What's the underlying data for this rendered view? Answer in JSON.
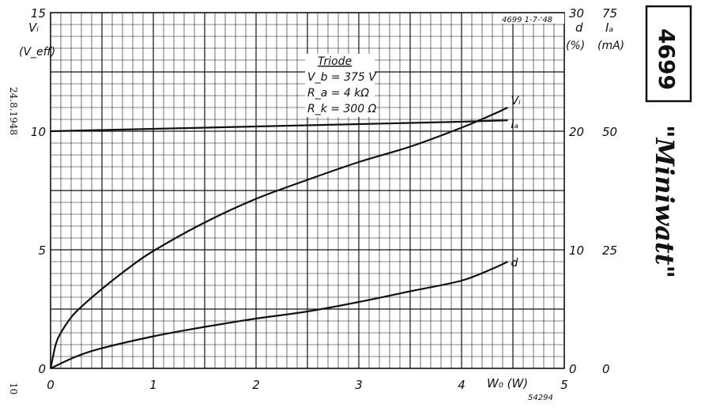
{
  "chart_data": {
    "type": "line",
    "header_code": "4699  1-7-'48",
    "tube_number": "4699",
    "brand": "\"Miniwatt\"",
    "side_date": "24.8.1948",
    "side_number": "10",
    "footer_code": "54294",
    "x_axis": {
      "label": "W₀ (W)",
      "range": [
        0,
        5
      ],
      "ticks": [
        "0",
        "1",
        "2",
        "3",
        "4",
        "5"
      ]
    },
    "y_left": {
      "label_top": "Vᵢ",
      "label_unit": "(V_eff)",
      "range": [
        0,
        15
      ],
      "ticks": [
        "0",
        "5",
        "10",
        "15"
      ],
      "tick_values": [
        0,
        5,
        10,
        15
      ]
    },
    "y_mid": {
      "label_top": "d",
      "label_unit": "(%)",
      "range": [
        0,
        30
      ],
      "ticks": [
        "0",
        "10",
        "20",
        "30"
      ],
      "tick_values": [
        0,
        10,
        20,
        30
      ]
    },
    "y_right": {
      "label_top": "Iₐ",
      "label_unit": "(mA)",
      "range": [
        0,
        75
      ],
      "ticks": [
        "0",
        "25",
        "50",
        "75"
      ],
      "tick_values": [
        0,
        25,
        50,
        75
      ]
    },
    "legend_box": {
      "title": "Triode",
      "lines": [
        "V_b = 375 V",
        "R_a = 4 kΩ",
        "R_k = 300 Ω"
      ]
    },
    "series": [
      {
        "name": "Vᵢ",
        "axis": "left",
        "x": [
          0,
          0.05,
          0.1,
          0.2,
          0.3,
          0.5,
          0.75,
          1.0,
          1.5,
          2.0,
          2.5,
          3.0,
          3.5,
          4.0,
          4.3,
          4.45
        ],
        "y": [
          0,
          1.0,
          1.5,
          2.15,
          2.6,
          3.35,
          4.2,
          4.95,
          6.15,
          7.15,
          7.95,
          8.7,
          9.35,
          10.15,
          10.7,
          11.0
        ]
      },
      {
        "name": "Iₐ",
        "axis": "right",
        "x": [
          0,
          1,
          2,
          3,
          4,
          4.45
        ],
        "y": [
          50,
          50.5,
          51,
          51.5,
          52,
          52.3
        ]
      },
      {
        "name": "d",
        "axis": "mid",
        "x": [
          0,
          0.25,
          0.5,
          1.0,
          1.5,
          2.0,
          2.5,
          3.0,
          3.5,
          4.0,
          4.3,
          4.45
        ],
        "y": [
          0,
          1.0,
          1.7,
          2.7,
          3.5,
          4.2,
          4.8,
          5.6,
          6.5,
          7.4,
          8.4,
          9.0
        ]
      }
    ],
    "grid": true
  }
}
